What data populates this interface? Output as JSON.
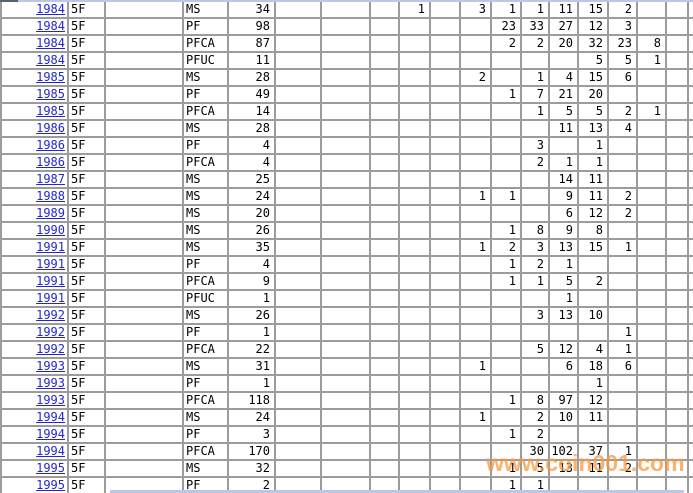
{
  "styles": {
    "grid_line_color": "#9c9c9c",
    "year_link_color": "#2525d0",
    "pane_edge_color": "#b7c9e6",
    "watermark_color": "#f7993f"
  },
  "watermark": {
    "text": "www.coin001.com"
  },
  "table": {
    "column_keys": [
      "year",
      "floor",
      "blank_a",
      "code",
      "count",
      "blank_b",
      "blank_c",
      "blank_d",
      "v1",
      "v2",
      "v3",
      "v4",
      "v5",
      "v6",
      "v7",
      "v8",
      "v9",
      "v10",
      "edge"
    ],
    "rows": [
      [
        "1984",
        "5F",
        "",
        "MS",
        "34",
        "",
        "",
        "",
        "1",
        "",
        "3",
        "1",
        "1",
        "11",
        "15",
        "2",
        "",
        "",
        ""
      ],
      [
        "1984",
        "5F",
        "",
        "PF",
        "98",
        "",
        "",
        "",
        "",
        "",
        "",
        "23",
        "33",
        "27",
        "12",
        "3",
        "",
        "",
        ""
      ],
      [
        "1984",
        "5F",
        "",
        "PFCA",
        "87",
        "",
        "",
        "",
        "",
        "",
        "",
        "2",
        "2",
        "20",
        "32",
        "23",
        "8",
        "",
        ""
      ],
      [
        "1984",
        "5F",
        "",
        "PFUC",
        "11",
        "",
        "",
        "",
        "",
        "",
        "",
        "",
        "",
        "",
        "5",
        "5",
        "1",
        "",
        ""
      ],
      [
        "1985",
        "5F",
        "",
        "MS",
        "28",
        "",
        "",
        "",
        "",
        "",
        "2",
        "",
        "1",
        "4",
        "15",
        "6",
        "",
        "",
        ""
      ],
      [
        "1985",
        "5F",
        "",
        "PF",
        "49",
        "",
        "",
        "",
        "",
        "",
        "",
        "1",
        "7",
        "21",
        "20",
        "",
        "",
        "",
        ""
      ],
      [
        "1985",
        "5F",
        "",
        "PFCA",
        "14",
        "",
        "",
        "",
        "",
        "",
        "",
        "",
        "1",
        "5",
        "5",
        "2",
        "1",
        "",
        ""
      ],
      [
        "1986",
        "5F",
        "",
        "MS",
        "28",
        "",
        "",
        "",
        "",
        "",
        "",
        "",
        "",
        "11",
        "13",
        "4",
        "",
        "",
        ""
      ],
      [
        "1986",
        "5F",
        "",
        "PF",
        "4",
        "",
        "",
        "",
        "",
        "",
        "",
        "",
        "3",
        "",
        "1",
        "",
        "",
        "",
        ""
      ],
      [
        "1986",
        "5F",
        "",
        "PFCA",
        "4",
        "",
        "",
        "",
        "",
        "",
        "",
        "",
        "2",
        "1",
        "1",
        "",
        "",
        "",
        ""
      ],
      [
        "1987",
        "5F",
        "",
        "MS",
        "25",
        "",
        "",
        "",
        "",
        "",
        "",
        "",
        "",
        "14",
        "11",
        "",
        "",
        "",
        ""
      ],
      [
        "1988",
        "5F",
        "",
        "MS",
        "24",
        "",
        "",
        "",
        "",
        "",
        "1",
        "1",
        "",
        "9",
        "11",
        "2",
        "",
        "",
        ""
      ],
      [
        "1989",
        "5F",
        "",
        "MS",
        "20",
        "",
        "",
        "",
        "",
        "",
        "",
        "",
        "",
        "6",
        "12",
        "2",
        "",
        "",
        ""
      ],
      [
        "1990",
        "5F",
        "",
        "MS",
        "26",
        "",
        "",
        "",
        "",
        "",
        "",
        "1",
        "8",
        "9",
        "8",
        "",
        "",
        "",
        ""
      ],
      [
        "1991",
        "5F",
        "",
        "MS",
        "35",
        "",
        "",
        "",
        "",
        "",
        "1",
        "2",
        "3",
        "13",
        "15",
        "1",
        "",
        "",
        ""
      ],
      [
        "1991",
        "5F",
        "",
        "PF",
        "4",
        "",
        "",
        "",
        "",
        "",
        "",
        "1",
        "2",
        "1",
        "",
        "",
        "",
        "",
        ""
      ],
      [
        "1991",
        "5F",
        "",
        "PFCA",
        "9",
        "",
        "",
        "",
        "",
        "",
        "",
        "1",
        "1",
        "5",
        "2",
        "",
        "",
        "",
        ""
      ],
      [
        "1991",
        "5F",
        "",
        "PFUC",
        "1",
        "",
        "",
        "",
        "",
        "",
        "",
        "",
        "",
        "1",
        "",
        "",
        "",
        "",
        ""
      ],
      [
        "1992",
        "5F",
        "",
        "MS",
        "26",
        "",
        "",
        "",
        "",
        "",
        "",
        "",
        "3",
        "13",
        "10",
        "",
        "",
        "",
        ""
      ],
      [
        "1992",
        "5F",
        "",
        "PF",
        "1",
        "",
        "",
        "",
        "",
        "",
        "",
        "",
        "",
        "",
        "",
        "1",
        "",
        "",
        ""
      ],
      [
        "1992",
        "5F",
        "",
        "PFCA",
        "22",
        "",
        "",
        "",
        "",
        "",
        "",
        "",
        "5",
        "12",
        "4",
        "1",
        "",
        "",
        ""
      ],
      [
        "1993",
        "5F",
        "",
        "MS",
        "31",
        "",
        "",
        "",
        "",
        "",
        "1",
        "",
        "",
        "6",
        "18",
        "6",
        "",
        "",
        ""
      ],
      [
        "1993",
        "5F",
        "",
        "PF",
        "1",
        "",
        "",
        "",
        "",
        "",
        "",
        "",
        "",
        "",
        "1",
        "",
        "",
        "",
        ""
      ],
      [
        "1993",
        "5F",
        "",
        "PFCA",
        "118",
        "",
        "",
        "",
        "",
        "",
        "",
        "1",
        "8",
        "97",
        "12",
        "",
        "",
        "",
        ""
      ],
      [
        "1994",
        "5F",
        "",
        "MS",
        "24",
        "",
        "",
        "",
        "",
        "",
        "1",
        "",
        "2",
        "10",
        "11",
        "",
        "",
        "",
        ""
      ],
      [
        "1994",
        "5F",
        "",
        "PF",
        "3",
        "",
        "",
        "",
        "",
        "",
        "",
        "1",
        "2",
        "",
        "",
        "",
        "",
        "",
        ""
      ],
      [
        "1994",
        "5F",
        "",
        "PFCA",
        "170",
        "",
        "",
        "",
        "",
        "",
        "",
        "",
        "30",
        "102",
        "37",
        "1",
        "",
        "",
        ""
      ],
      [
        "1995",
        "5F",
        "",
        "MS",
        "32",
        "",
        "",
        "",
        "",
        "",
        "",
        "1",
        "5",
        "13",
        "11",
        "2",
        "",
        "",
        ""
      ],
      [
        "1995",
        "5F",
        "",
        "PF",
        "2",
        "",
        "",
        "",
        "",
        "",
        "",
        "1",
        "1",
        "",
        "",
        "",
        "",
        "",
        ""
      ]
    ]
  }
}
